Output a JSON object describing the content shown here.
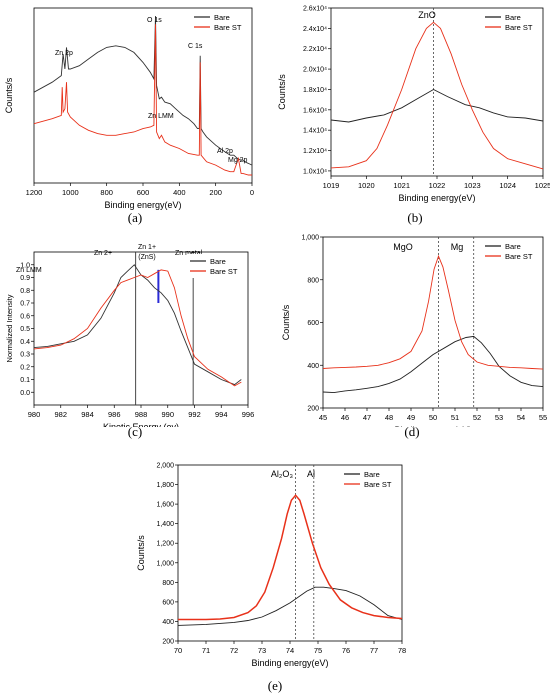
{
  "captions": [
    "(a)",
    "(b)",
    "(c)",
    "(d)",
    "(e)"
  ],
  "chart_data": [
    {
      "id": "a",
      "type": "line",
      "title": "",
      "xlabel": "Binding energy(eV)",
      "ylabel": "Counts/s",
      "xlim": [
        1200,
        0
      ],
      "x_reversed": true,
      "xticks": [
        "1200",
        "1000",
        "800",
        "600",
        "400",
        "200",
        "0"
      ],
      "yticks_shown": false,
      "legend": {
        "placement": "top-right",
        "entries": [
          "Bare",
          "Bare ST"
        ]
      },
      "annotations": [
        "Zn 2p",
        "O 1s",
        "C 1s",
        "Zn LMM",
        "Al 2p",
        "Mg 2p"
      ],
      "series": [
        {
          "name": "Bare",
          "color": "#333333",
          "x": [
            1200,
            1100,
            1050,
            1040,
            1030,
            1021,
            1010,
            1000,
            950,
            900,
            850,
            800,
            750,
            700,
            650,
            600,
            560,
            540,
            531,
            525,
            510,
            498,
            480,
            450,
            420,
            400,
            380,
            350,
            320,
            300,
            290,
            285,
            280,
            270,
            250,
            200,
            150,
            120,
            100,
            80,
            60,
            50,
            40,
            20,
            0
          ],
          "y": [
            0.52,
            0.58,
            0.62,
            0.75,
            0.66,
            0.79,
            0.66,
            0.66,
            0.68,
            0.72,
            0.76,
            0.79,
            0.8,
            0.79,
            0.76,
            0.7,
            0.64,
            0.6,
            0.98,
            0.56,
            0.48,
            0.49,
            0.46,
            0.45,
            0.42,
            0.4,
            0.38,
            0.36,
            0.33,
            0.3,
            0.3,
            0.74,
            0.3,
            0.28,
            0.25,
            0.2,
            0.16,
            0.14,
            0.14,
            0.12,
            0.11,
            0.11,
            0.1,
            0.09,
            0.08
          ]
        },
        {
          "name": "Bare ST",
          "color": "#e8311a",
          "x": [
            1200,
            1100,
            1050,
            1045,
            1040,
            1030,
            1021,
            1015,
            1000,
            950,
            900,
            850,
            800,
            750,
            700,
            650,
            600,
            560,
            540,
            531,
            525,
            510,
            498,
            480,
            450,
            400,
            350,
            300,
            290,
            285,
            280,
            250,
            200,
            150,
            120,
            100,
            75,
            60,
            50,
            20,
            0
          ],
          "y": [
            0.33,
            0.36,
            0.38,
            0.55,
            0.4,
            0.42,
            0.58,
            0.4,
            0.37,
            0.32,
            0.29,
            0.27,
            0.26,
            0.26,
            0.27,
            0.28,
            0.3,
            0.31,
            0.32,
            0.93,
            0.28,
            0.24,
            0.26,
            0.22,
            0.2,
            0.18,
            0.15,
            0.14,
            0.14,
            0.7,
            0.14,
            0.1,
            0.08,
            0.05,
            0.04,
            0.04,
            0.12,
            0.03,
            0.03,
            0.02,
            0.02
          ]
        }
      ]
    },
    {
      "id": "b",
      "type": "line",
      "title": "",
      "xlabel": "Binding energy(eV)",
      "ylabel": "Counts/s",
      "xlim": [
        1019,
        1025
      ],
      "ylim": [
        9500,
        26000
      ],
      "xticks": [
        "1019",
        "1020",
        "1021",
        "1022",
        "1023",
        "1024",
        "1025"
      ],
      "ytick_values": [
        10000,
        12000,
        14000,
        16000,
        18000,
        20000,
        22000,
        24000,
        26000
      ],
      "yticks": [
        "1.0x10⁴",
        "1.2x10⁴",
        "1.4x10⁴",
        "1.6x10⁴",
        "1.8x10⁴",
        "2.0x10⁴",
        "2.2x10⁴",
        "2.4x10⁴",
        "2.6x10⁴"
      ],
      "legend": {
        "placement": "top-right",
        "entries": [
          "Bare",
          "Bare ST"
        ]
      },
      "annotations": [
        "ZnO"
      ],
      "reference_lines_x": [
        1021.9
      ],
      "series": [
        {
          "name": "Bare",
          "color": "#222222",
          "x": [
            1019,
            1019.5,
            1020,
            1020.5,
            1021,
            1021.5,
            1021.9,
            1022.3,
            1022.8,
            1023.2,
            1023.6,
            1024,
            1024.5,
            1025
          ],
          "y": [
            15000,
            14800,
            15200,
            15500,
            16200,
            17200,
            18000,
            17300,
            16500,
            16200,
            15700,
            15300,
            15200,
            14900
          ]
        },
        {
          "name": "Bare ST",
          "color": "#e8311a",
          "x": [
            1019,
            1019.5,
            1020,
            1020.3,
            1020.6,
            1021,
            1021.4,
            1021.7,
            1021.9,
            1022.1,
            1022.4,
            1022.7,
            1023,
            1023.3,
            1023.6,
            1024,
            1024.5,
            1025
          ],
          "y": [
            10300,
            10400,
            11000,
            12200,
            14500,
            18000,
            22000,
            24000,
            24600,
            24000,
            21500,
            18500,
            16000,
            13800,
            12200,
            11200,
            10700,
            10200
          ]
        }
      ]
    },
    {
      "id": "c",
      "type": "line",
      "title": "",
      "xlabel": "Kinetic Energy (ev)",
      "ylabel": "Normalized Intensity",
      "xlim": [
        980,
        996
      ],
      "ylim": [
        -0.1,
        1.1
      ],
      "xticks": [
        "980",
        "982",
        "984",
        "986",
        "988",
        "990",
        "992",
        "994",
        "996"
      ],
      "ytick_values": [
        0.0,
        0.1,
        0.2,
        0.3,
        0.4,
        0.5,
        0.6,
        0.7,
        0.8,
        0.9,
        1.0
      ],
      "yticks": [
        "0.0",
        "0.1",
        "0.2",
        "0.3",
        "0.4",
        "0.5",
        "0.6",
        "0.7",
        "0.8",
        "0.9",
        "1.0"
      ],
      "legend": {
        "placement": "top-right",
        "entries": [
          "Bare",
          "Bare ST"
        ]
      },
      "annotations": [
        "Zn LMM",
        "Zn 2+",
        "Zn 1+",
        "(ZnS)",
        "Zn metal"
      ],
      "reference_lines_x": [
        987.6,
        991.9
      ],
      "marker_line": {
        "x": 989.3,
        "ymin": 0.7,
        "ymax": 0.96,
        "color": "#2b2bd6"
      },
      "series": [
        {
          "name": "Bare",
          "color": "#333333",
          "x": [
            980,
            981,
            982,
            983,
            984,
            985,
            986,
            986.5,
            987,
            987.5,
            988,
            988.5,
            989,
            989.5,
            990,
            990.5,
            991,
            991.5,
            992,
            993,
            994,
            995,
            995.5
          ],
          "y": [
            0.35,
            0.36,
            0.38,
            0.4,
            0.45,
            0.58,
            0.78,
            0.9,
            0.95,
            1.0,
            0.92,
            0.88,
            0.82,
            0.78,
            0.72,
            0.62,
            0.48,
            0.35,
            0.22,
            0.16,
            0.1,
            0.06,
            0.1
          ]
        },
        {
          "name": "Bare ST",
          "color": "#e8311a",
          "x": [
            980,
            981,
            982,
            983,
            984,
            985,
            986,
            986.5,
            987,
            987.5,
            988,
            988.5,
            989,
            989.5,
            990,
            990.5,
            991,
            991.5,
            992,
            993,
            994,
            995,
            995.5
          ],
          "y": [
            0.34,
            0.35,
            0.37,
            0.42,
            0.5,
            0.66,
            0.8,
            0.86,
            0.88,
            0.9,
            0.92,
            0.9,
            0.93,
            0.96,
            0.95,
            0.82,
            0.6,
            0.42,
            0.28,
            0.18,
            0.12,
            0.05,
            0.08
          ]
        }
      ]
    },
    {
      "id": "d",
      "type": "line",
      "title": "",
      "xlabel": "Binding energy(eV)",
      "ylabel": "Counts/s",
      "xlim": [
        45,
        55
      ],
      "ylim": [
        200,
        1000
      ],
      "xticks": [
        "45",
        "46",
        "47",
        "48",
        "49",
        "50",
        "51",
        "52",
        "53",
        "54",
        "55"
      ],
      "ytick_values": [
        200,
        400,
        600,
        800,
        1000
      ],
      "yticks": [
        "200",
        "400",
        "600",
        "800",
        "1,000"
      ],
      "legend": {
        "placement": "top-right",
        "entries": [
          "Bare",
          "Bare ST"
        ]
      },
      "annotations": [
        "MgO",
        "Mg"
      ],
      "reference_lines_x": [
        50.25,
        51.85
      ],
      "series": [
        {
          "name": "Bare",
          "color": "#222222",
          "x": [
            45,
            45.5,
            46,
            46.5,
            47,
            47.5,
            48,
            48.5,
            49,
            49.5,
            50,
            50.5,
            51,
            51.5,
            51.85,
            52.2,
            52.6,
            53,
            53.5,
            54,
            54.5,
            55
          ],
          "y": [
            275,
            272,
            280,
            285,
            292,
            300,
            315,
            335,
            370,
            410,
            450,
            480,
            510,
            530,
            535,
            505,
            455,
            395,
            350,
            320,
            305,
            300
          ]
        },
        {
          "name": "Bare ST",
          "color": "#e8311a",
          "x": [
            45,
            45.5,
            46,
            46.5,
            47,
            47.5,
            48,
            48.5,
            49,
            49.5,
            49.8,
            50.05,
            50.25,
            50.45,
            50.7,
            51,
            51.3,
            51.6,
            52,
            52.5,
            53,
            53.5,
            54,
            54.5,
            55
          ],
          "y": [
            385,
            388,
            390,
            392,
            395,
            400,
            412,
            430,
            465,
            560,
            700,
            850,
            910,
            860,
            750,
            610,
            510,
            450,
            415,
            400,
            395,
            390,
            388,
            385,
            382
          ]
        }
      ]
    },
    {
      "id": "e",
      "type": "line",
      "title": "",
      "xlabel": "Binding energy(eV)",
      "ylabel": "Counts/s",
      "xlim": [
        70,
        78
      ],
      "ylim": [
        200,
        2000
      ],
      "xticks": [
        "70",
        "71",
        "72",
        "73",
        "74",
        "75",
        "76",
        "77",
        "78"
      ],
      "ytick_values": [
        200,
        400,
        600,
        800,
        1000,
        1200,
        1400,
        1600,
        1800,
        2000
      ],
      "yticks": [
        "200",
        "400",
        "600",
        "800",
        "1,000",
        "1,200",
        "1,400",
        "1,600",
        "1,800",
        "2,000"
      ],
      "legend": {
        "placement": "top-right",
        "entries": [
          "Bare",
          "Bare ST"
        ]
      },
      "annotations": [
        "Al₂O₃",
        "Al"
      ],
      "reference_lines_x": [
        74.2,
        74.85
      ],
      "series": [
        {
          "name": "Bare",
          "color": "#222222",
          "x": [
            70,
            70.5,
            71,
            71.5,
            72,
            72.5,
            73,
            73.5,
            74,
            74.3,
            74.6,
            74.9,
            75.2,
            75.6,
            76,
            76.5,
            77,
            77.5,
            78
          ],
          "y": [
            360,
            365,
            370,
            380,
            390,
            410,
            445,
            510,
            590,
            650,
            710,
            750,
            750,
            735,
            715,
            660,
            570,
            460,
            420
          ]
        },
        {
          "name": "Bare ST",
          "color": "#e8311a",
          "x": [
            70,
            70.5,
            71,
            71.5,
            72,
            72.5,
            72.8,
            73.1,
            73.4,
            73.7,
            73.9,
            74.05,
            74.2,
            74.35,
            74.5,
            74.8,
            75.1,
            75.4,
            75.8,
            76.2,
            76.6,
            77,
            77.5,
            78
          ],
          "y": [
            420,
            420,
            420,
            425,
            440,
            490,
            560,
            700,
            950,
            1250,
            1500,
            1640,
            1690,
            1640,
            1500,
            1200,
            950,
            780,
            620,
            540,
            490,
            460,
            440,
            430
          ]
        }
      ]
    }
  ]
}
